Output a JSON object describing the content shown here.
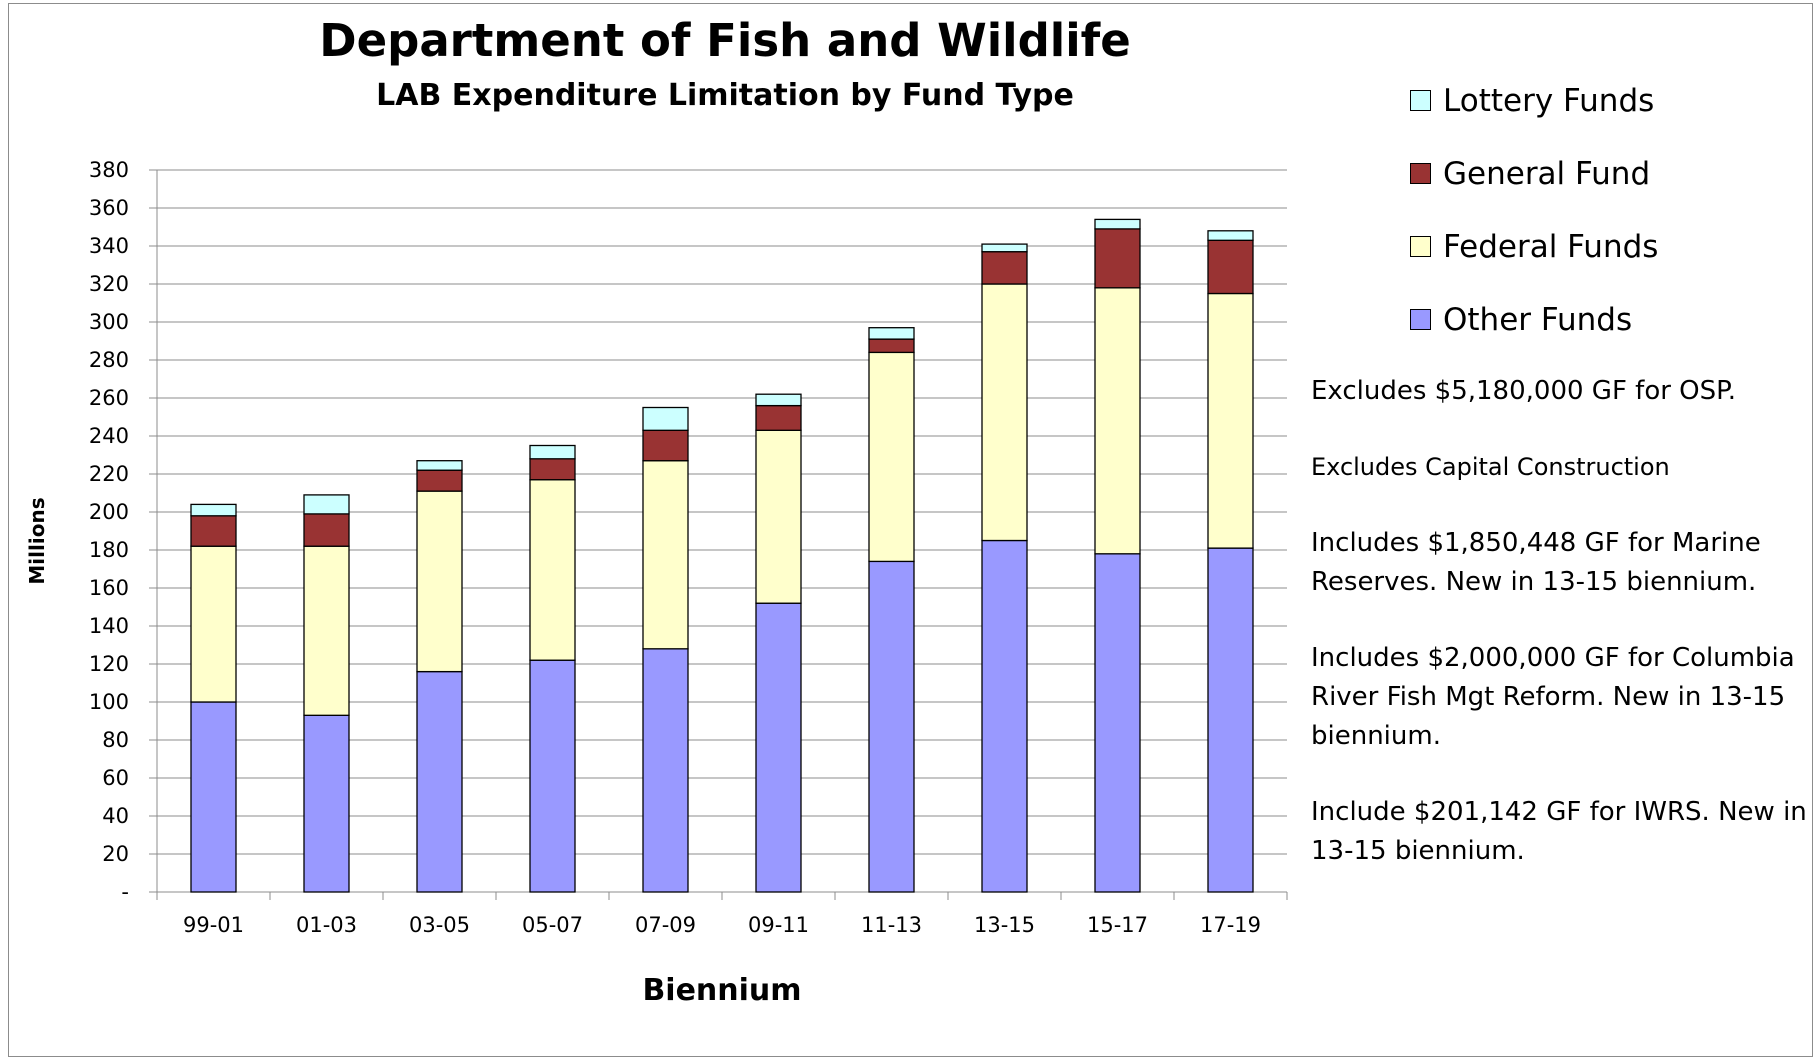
{
  "chart_data": {
    "type": "bar",
    "stacked": true,
    "title": "Department of Fish and Wildlife",
    "subtitle": "LAB Expenditure Limitation by Fund Type",
    "xlabel": "Biennium",
    "ylabel": "Millions",
    "ylim": [
      0,
      380
    ],
    "yticks": [
      "-",
      "20",
      "40",
      "60",
      "80",
      "100",
      "120",
      "140",
      "160",
      "180",
      "200",
      "220",
      "240",
      "260",
      "280",
      "300",
      "320",
      "340",
      "360",
      "380"
    ],
    "grid": true,
    "legend_position": "right",
    "categories": [
      "99-01",
      "01-03",
      "03-05",
      "05-07",
      "07-09",
      "09-11",
      "11-13",
      "13-15",
      "15-17",
      "17-19"
    ],
    "series": [
      {
        "name": "Other Funds",
        "color": "#9999ff",
        "values": [
          100,
          93,
          116,
          122,
          128,
          152,
          174,
          185,
          178,
          181
        ]
      },
      {
        "name": "Federal Funds",
        "color": "#ffffcc",
        "values": [
          82,
          89,
          95,
          95,
          99,
          91,
          110,
          135,
          140,
          134
        ]
      },
      {
        "name": "General Fund",
        "color": "#993333",
        "values": [
          16,
          17,
          11,
          11,
          16,
          13,
          7,
          17,
          31,
          28
        ]
      },
      {
        "name": "Lottery Funds",
        "color": "#ccffff",
        "values": [
          6,
          10,
          5,
          7,
          12,
          6,
          6,
          4,
          5,
          5
        ]
      }
    ],
    "legend_order": [
      "Lottery Funds",
      "General Fund",
      "Federal Funds",
      "Other Funds"
    ]
  },
  "notes": [
    "Excludes $5,180,000 GF for OSP.",
    "Excludes Capital Construction",
    "Includes $1,850,448 GF for Marine Reserves. New in 13-15 biennium.",
    "Includes $2,000,000 GF for Columbia River Fish Mgt Reform. New in 13-15 biennium.",
    "Include $201,142 GF for IWRS. New in 13-15 biennium."
  ]
}
